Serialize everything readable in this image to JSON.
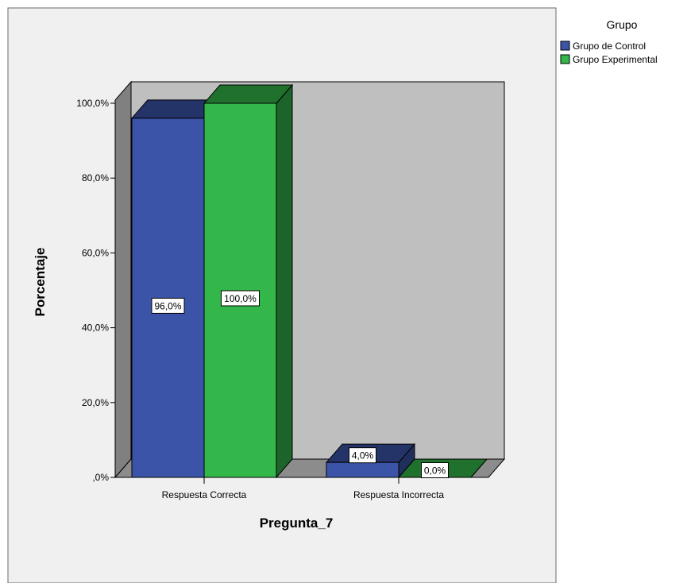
{
  "chart_data": {
    "type": "bar",
    "subtype": "3d-clustered",
    "xlabel": "Pregunta_7",
    "ylabel": "Porcentaje",
    "ylim": [
      0,
      100
    ],
    "yticks": [
      0,
      20,
      40,
      60,
      80,
      100
    ],
    "ytick_labels": [
      ",0%",
      "20,0%",
      "40,0%",
      "60,0%",
      "80,0%",
      "100,0%"
    ],
    "categories": [
      "Respuesta Correcta",
      "Respuesta Incorrecta"
    ],
    "legend_title": "Grupo",
    "legend_position": "top-right",
    "grid": false,
    "series": [
      {
        "name": "Grupo de Control",
        "values": [
          96.0,
          4.0
        ],
        "labels": [
          "96,0%",
          "4,0%"
        ],
        "color": "#3b54a8"
      },
      {
        "name": "Grupo Experimental",
        "values": [
          100.0,
          0.0
        ],
        "labels": [
          "100,0%",
          "0,0%"
        ],
        "color": "#33b64a"
      }
    ]
  },
  "colors": {
    "plot_background": "#f0f0f0",
    "wall": "#bfbfbf",
    "side_wall": "#808080",
    "floor": "#8c8c8c",
    "axis": "#000000"
  }
}
